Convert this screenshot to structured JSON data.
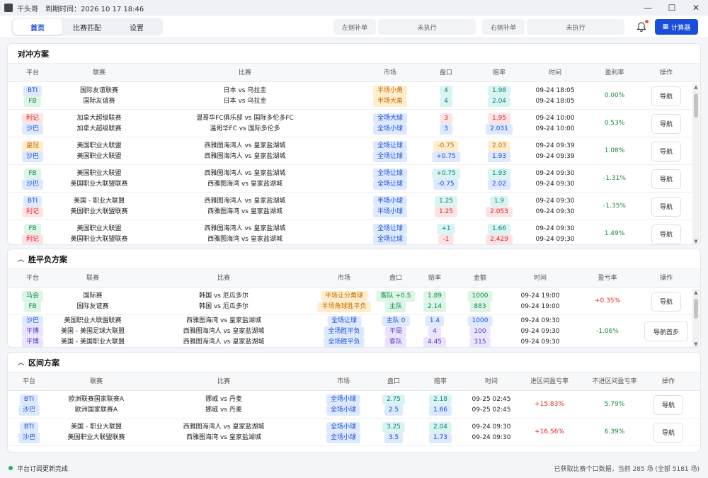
{
  "app": {
    "title": "干头哥",
    "period_text": "到期时间：2026 10 17 18:46"
  },
  "window": {
    "minimize": "—",
    "maximize": "☐",
    "close": "✕"
  },
  "nav": {
    "tabs": [
      "首页",
      "比赛匹配",
      "设置"
    ],
    "active_tab": 0,
    "left_label": "左侧补单",
    "left_value": "未执行",
    "right_label": "右侧补单",
    "right_value": "未执行",
    "calc_label": "计算器"
  },
  "hedge": {
    "title": "对冲方案",
    "headers": [
      "平台",
      "联赛",
      "比赛",
      "市场",
      "盘口",
      "赔率",
      "时间",
      "盈利率",
      "操作"
    ],
    "rows": [
      {
        "plat": [
          [
            "BTI",
            "blue"
          ],
          [
            "FB",
            "green"
          ]
        ],
        "league": [
          "国际友谊联赛",
          "国际友谊赛"
        ],
        "match": [
          "日本 vs 乌拉圭",
          "日本 vs 乌拉圭"
        ],
        "market": [
          [
            "半场小角",
            "orange"
          ],
          [
            "半场大角",
            "orange"
          ]
        ],
        "line": [
          [
            "4",
            "teal"
          ],
          [
            "4",
            "teal"
          ]
        ],
        "odds": [
          [
            "1.98",
            "teal"
          ],
          [
            "2.04",
            "teal"
          ]
        ],
        "time": [
          "09-24 18:05",
          "09-24 18:05"
        ],
        "profit": "0.00%",
        "ps": "pos",
        "btn": "导航"
      },
      {
        "plat": [
          [
            "利记",
            "red"
          ],
          [
            "沙巴",
            "blue"
          ]
        ],
        "league": [
          "加拿大超级联赛",
          "加拿大超级联赛"
        ],
        "match": [
          "温哥华FC俱乐部 vs 国际多伦多FC",
          "温哥华FC vs 国际多伦多"
        ],
        "market": [
          [
            "全场大球",
            "blue"
          ],
          [
            "全场小球",
            "blue"
          ]
        ],
        "line": [
          [
            "3",
            "red"
          ],
          [
            "3",
            "blue"
          ]
        ],
        "odds": [
          [
            "1.95",
            "red"
          ],
          [
            "2.031",
            "blue"
          ]
        ],
        "time": [
          "09-24 10:00",
          "09-24 10:00"
        ],
        "profit": "0.53%",
        "ps": "pos",
        "btn": "导航"
      },
      {
        "plat": [
          [
            "皇冠",
            "orange"
          ],
          [
            "沙巴",
            "blue"
          ]
        ],
        "league": [
          "美国职业大联盟",
          "美国职业大联盟"
        ],
        "match": [
          "西雅图海湾人 vs 皇家盐湖城",
          "西雅图海湾人 vs 皇家盐湖城"
        ],
        "market": [
          [
            "全场让球",
            "blue"
          ],
          [
            "全场让球",
            "blue"
          ]
        ],
        "line": [
          [
            "-0.75",
            "orange"
          ],
          [
            "+0.75",
            "blue"
          ]
        ],
        "odds": [
          [
            "2.03",
            "orange"
          ],
          [
            "1.93",
            "blue"
          ]
        ],
        "time": [
          "09-24 09:39",
          "09-24 09:39"
        ],
        "profit": "1.08%",
        "ps": "pos",
        "btn": "导航"
      },
      {
        "plat": [
          [
            "FB",
            "green"
          ],
          [
            "沙巴",
            "blue"
          ]
        ],
        "league": [
          "美国职业大联盟",
          "美国职业大联盟联赛"
        ],
        "match": [
          "西雅图海湾人 vs 皇家盐湖城",
          "西雅图海湾 vs 皇家盐湖城"
        ],
        "market": [
          [
            "全场让球",
            "blue"
          ],
          [
            "全场让球",
            "blue"
          ]
        ],
        "line": [
          [
            "+0.75",
            "teal"
          ],
          [
            "-0.75",
            "blue"
          ]
        ],
        "odds": [
          [
            "1.93",
            "teal"
          ],
          [
            "2.02",
            "blue"
          ]
        ],
        "time": [
          "09-24 09:30",
          "09-24 09:30"
        ],
        "profit": "-1.31%",
        "ps": "pos",
        "btn": "导航"
      },
      {
        "plat": [
          [
            "BTI",
            "blue"
          ],
          [
            "利记",
            "red"
          ]
        ],
        "league": [
          "美国 - 职业大联盟",
          "美国职业大联盟联赛"
        ],
        "match": [
          "西雅图海湾人 vs 皇家盐湖城",
          "西雅图海湾 vs 皇家盐湖城"
        ],
        "market": [
          [
            "半场小球",
            "blue"
          ],
          [
            "半场小球",
            "blue"
          ]
        ],
        "line": [
          [
            "1.25",
            "teal"
          ],
          [
            "1.25",
            "red"
          ]
        ],
        "odds": [
          [
            "1.9",
            "teal"
          ],
          [
            "2.053",
            "red"
          ]
        ],
        "time": [
          "09-24 09:30",
          "09-24 09:30"
        ],
        "profit": "-1.35%",
        "ps": "pos",
        "btn": "导航"
      },
      {
        "plat": [
          [
            "FB",
            "green"
          ],
          [
            "利记",
            "red"
          ]
        ],
        "league": [
          "美国职业大联盟",
          "美国职业大联盟联赛"
        ],
        "match": [
          "西雅图海湾人 vs 皇家盐湖城",
          "西雅图海湾 vs 皇家盐湖城"
        ],
        "market": [
          [
            "全场让球",
            "blue"
          ],
          [
            "全场让球",
            "blue"
          ]
        ],
        "line": [
          [
            "+1",
            "teal"
          ],
          [
            "-1",
            "red"
          ]
        ],
        "odds": [
          [
            "1.66",
            "teal"
          ],
          [
            "2.429",
            "red"
          ]
        ],
        "time": [
          "09-24 09:30",
          "09-24 09:30"
        ],
        "profit": "1.49%",
        "ps": "pos",
        "btn": "导航"
      }
    ]
  },
  "wdl": {
    "title": "胜平负方案",
    "headers": [
      "平台",
      "联赛",
      "比赛",
      "市场",
      "盘口",
      "赔率",
      "金额",
      "时间",
      "盈亏率",
      "操作"
    ],
    "rows": [
      {
        "plat": [
          [
            "马会",
            "green"
          ],
          [
            "FB",
            "green"
          ]
        ],
        "league": [
          "国际赛",
          "国际友谊赛"
        ],
        "match": [
          "韩国 vs 厄瓜多尔",
          "韩国 vs 厄瓜多尔"
        ],
        "market": [
          [
            "半场让分角球",
            "orange"
          ],
          [
            "半场角球胜平负",
            "orange"
          ]
        ],
        "line": [
          [
            "客队 +0.5",
            "green"
          ],
          [
            "主队",
            "green"
          ]
        ],
        "odds": [
          [
            "1.89",
            "green"
          ],
          [
            "2.14",
            "green"
          ]
        ],
        "amount": [
          [
            "1000",
            "green"
          ],
          [
            "883",
            "green"
          ]
        ],
        "time": [
          "09-24 19:00",
          "09-24 19:00"
        ],
        "profit": "+0.35%",
        "ps": "neg",
        "btn": "导航"
      },
      {
        "plat": [
          [
            "沙巴",
            "blue"
          ],
          [
            "平博",
            "purple"
          ],
          [
            "平博",
            "purple"
          ]
        ],
        "league": [
          "美国职业大联盟联赛",
          "美国 - 美国足球大联盟",
          "美国 - 美国职业大联盟"
        ],
        "match": [
          "西雅图海湾 vs 皇家盐湖城",
          "西雅图海湾人 vs 皇家盐湖城",
          "西雅图海湾人 vs 皇家盐湖城"
        ],
        "market": [
          [
            "全场让球",
            "blue"
          ],
          [
            "全场胜平负",
            "blue"
          ],
          [
            "全场胜平负",
            "blue"
          ]
        ],
        "line": [
          [
            "主队 0",
            "blue"
          ],
          [
            "平局",
            "purple"
          ],
          [
            "客队",
            "purple"
          ]
        ],
        "odds": [
          [
            "1.4",
            "blue"
          ],
          [
            "4",
            "purple"
          ],
          [
            "4.45",
            "purple"
          ]
        ],
        "amount": [
          [
            "1000",
            "blue"
          ],
          [
            "100",
            "purple"
          ],
          [
            "315",
            "purple"
          ]
        ],
        "time": [
          "09-24 09:30",
          "09-24 09:30",
          "09-24 09:30"
        ],
        "profit": "-1.06%",
        "ps": "pos",
        "btn": "导航首步"
      }
    ]
  },
  "range": {
    "title": "区间方案",
    "headers": [
      "平台",
      "联赛",
      "比赛",
      "市场",
      "盘口",
      "赔率",
      "时间",
      "进区间盈亏率",
      "不进区间盈亏率",
      "操作"
    ],
    "rows": [
      {
        "plat": [
          [
            "BTI",
            "blue"
          ],
          [
            "沙巴",
            "blue"
          ]
        ],
        "league": [
          "欧洲联赛国家联赛A",
          "欧洲国家联赛A"
        ],
        "match": [
          "挪威 vs 丹麦",
          "挪威 vs 丹麦"
        ],
        "market": [
          [
            "全场小球",
            "blue"
          ],
          [
            "全场小球",
            "blue"
          ]
        ],
        "line": [
          [
            "2.75",
            "teal"
          ],
          [
            "2.5",
            "blue"
          ]
        ],
        "odds": [
          [
            "2.18",
            "teal"
          ],
          [
            "1.66",
            "blue"
          ]
        ],
        "time": [
          "09-25 02:45",
          "09-25 02:45"
        ],
        "p_in": "+15.83%",
        "p_out": "5.79%",
        "btn": "导航"
      },
      {
        "plat": [
          [
            "BTI",
            "blue"
          ],
          [
            "沙巴",
            "blue"
          ]
        ],
        "league": [
          "美国 - 职业大联盟",
          "美国职业大联盟联赛"
        ],
        "match": [
          "西雅图海湾人 vs 皇家盐湖城",
          "西雅图海湾 vs 皇家盐湖城"
        ],
        "market": [
          [
            "全场小球",
            "blue"
          ],
          [
            "全场小球",
            "blue"
          ]
        ],
        "line": [
          [
            "3.25",
            "teal"
          ],
          [
            "3.5",
            "blue"
          ]
        ],
        "odds": [
          [
            "2.04",
            "teal"
          ],
          [
            "1.73",
            "blue"
          ]
        ],
        "time": [
          "09-24 09:30",
          "09-24 09:30"
        ],
        "p_in": "+16.56%",
        "p_out": "6.39%",
        "btn": "导航"
      }
    ]
  },
  "status": {
    "left": "平台订阅更新完成",
    "right": "已获取比赛个口数据，当前 285 场 (全部 5181 场)"
  }
}
